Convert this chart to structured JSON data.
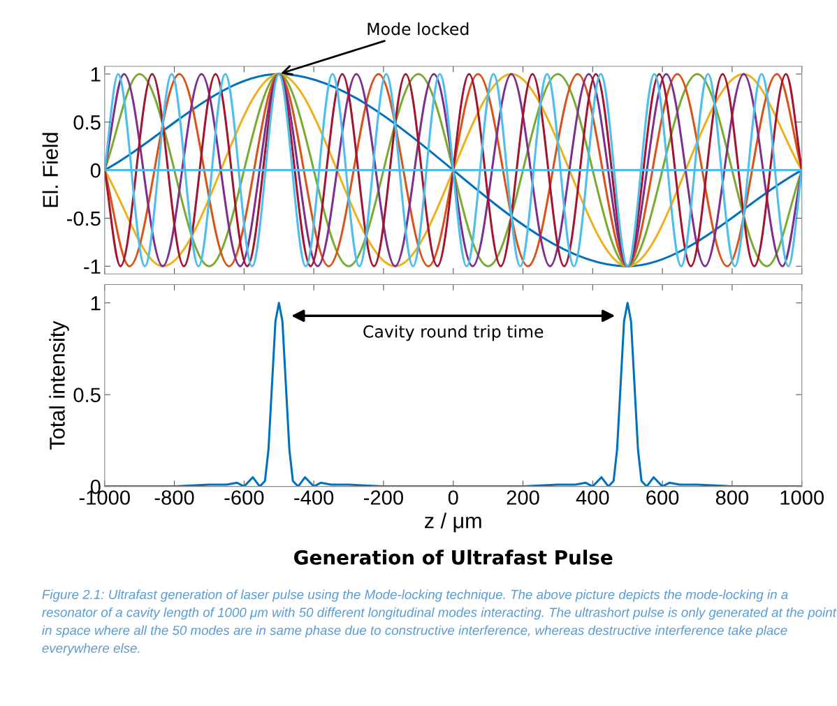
{
  "chart_data": [
    {
      "type": "line",
      "ylabel": "El. Field",
      "xlim": [
        -1000,
        1000
      ],
      "ylim": [
        -1.08,
        1.08
      ],
      "xticks": [
        {
          "value": -1000,
          "label": null
        },
        {
          "value": -800,
          "label": null
        },
        {
          "value": -600,
          "label": null
        },
        {
          "value": -400,
          "label": null
        },
        {
          "value": -200,
          "label": null
        },
        {
          "value": 0,
          "label": null
        },
        {
          "value": 200,
          "label": null
        },
        {
          "value": 400,
          "label": null
        },
        {
          "value": 600,
          "label": null
        },
        {
          "value": 800,
          "label": null
        },
        {
          "value": 1000,
          "label": null
        }
      ],
      "yticks": [
        -1,
        -0.5,
        0,
        0.5,
        1
      ],
      "tick_labels": "y",
      "grid": false,
      "line_style": "solid",
      "annotations": [
        {
          "text": "Mode locked",
          "x": -500,
          "y": 1
        }
      ],
      "series": [
        {
          "color": "#0072bd",
          "x": [
            -1000,
            -500,
            500,
            1000
          ],
          "values": [
            0,
            1,
            -1,
            0
          ]
        },
        {
          "color": "#edb120",
          "x": [
            -1000,
            -833.3,
            -500,
            -166.7,
            166.7,
            500,
            833.3,
            1000
          ],
          "values": [
            0,
            -1,
            1,
            -1,
            1,
            -1,
            1,
            0
          ]
        },
        {
          "color": "#77ac30",
          "x": [
            -1000,
            -900,
            -700,
            -500,
            -300,
            -100,
            100,
            300,
            500,
            700,
            900,
            1000
          ],
          "values": [
            0,
            1,
            -1,
            1,
            -1,
            1,
            -1,
            1,
            -1,
            1,
            -1,
            0
          ]
        },
        {
          "color": "#d95319",
          "x": [
            -1000,
            -928.6,
            -785.7,
            -642.9,
            -500,
            -357.1,
            -214.3,
            -71.4,
            71.4,
            214.3,
            357.1,
            500,
            642.9,
            785.7,
            928.6,
            1000
          ],
          "values": [
            0,
            -1,
            1,
            -1,
            1,
            -1,
            1,
            -1,
            1,
            -1,
            1,
            -1,
            1,
            -1,
            1,
            0
          ]
        },
        {
          "color": "#7e2f8e",
          "x": [
            -1000,
            -944.4,
            -833.3,
            -722.2,
            -611.1,
            -500,
            -388.9,
            -277.8,
            -166.7,
            -55.6,
            55.6,
            166.7,
            277.8,
            388.9,
            500,
            611.1,
            722.2,
            833.3,
            944.4,
            1000
          ],
          "values": [
            0,
            1,
            -1,
            1,
            -1,
            1,
            -1,
            1,
            -1,
            1,
            -1,
            1,
            -1,
            1,
            -1,
            1,
            -1,
            1,
            -1,
            0
          ]
        },
        {
          "color": "#a2142f",
          "x": [
            -1000,
            -954.5,
            -863.6,
            -772.7,
            -681.8,
            -590.9,
            -500,
            -409.1,
            -318.2,
            -227.3,
            -136.4,
            -45.5,
            45.5,
            136.4,
            227.3,
            318.2,
            409.1,
            500,
            590.9,
            681.8,
            772.7,
            863.6,
            954.5,
            1000
          ],
          "values": [
            0,
            -1,
            1,
            -1,
            1,
            -1,
            1,
            -1,
            1,
            -1,
            1,
            -1,
            1,
            -1,
            1,
            -1,
            1,
            -1,
            1,
            -1,
            1,
            -1,
            1,
            0
          ]
        },
        {
          "color": "#4dbeee",
          "x": [
            -1000,
            -961.5,
            -884.6,
            -807.7,
            -730.8,
            -653.8,
            -576.9,
            -500,
            -423.1,
            -346.2,
            -269.2,
            -192.3,
            -115.4,
            -38.5,
            38.5,
            115.4,
            192.3,
            269.2,
            346.2,
            423.1,
            500,
            576.9,
            653.8,
            730.8,
            807.7,
            884.6,
            961.5,
            1000
          ],
          "values": [
            0,
            1,
            -1,
            1,
            -1,
            1,
            -1,
            1,
            -1,
            1,
            -1,
            1,
            -1,
            1,
            -1,
            1,
            -1,
            1,
            -1,
            1,
            -1,
            1,
            -1,
            1,
            -1,
            1,
            -1,
            0
          ]
        },
        {
          "color": "#4dbeee",
          "x": [
            -1000,
            1000
          ],
          "values": [
            0,
            0
          ]
        }
      ]
    },
    {
      "type": "line",
      "title": "Generation of Ultrafast Pulse",
      "xlabel": "z / μm",
      "ylabel": "Total intensity",
      "xlim": [
        -1000,
        1000
      ],
      "ylim": [
        0,
        1.1
      ],
      "xticks": [
        -1000,
        -800,
        -600,
        -400,
        -200,
        0,
        200,
        400,
        600,
        800,
        1000
      ],
      "yticks": [
        0,
        0.5,
        1
      ],
      "grid": false,
      "line_style": "solid",
      "annotations": [
        "Cavity round trip time",
        "Figure 2.1: Ultrafast generation of laser pulse using the Mode-locking technique. The above picture depicts the mode-locking in a resonator of a cavity length of 1000 μm with 50 different longitudinal modes interacting. The ultrashort pulse is only generated at the point in space where all the 50 modes are in same phase due to constructive interference, whereas destructive interference take place everywhere else."
      ],
      "series": [
        {
          "color": "#0072bd",
          "x": [
            -1000,
            -900,
            -800,
            -700,
            -650,
            -620,
            -600,
            -575,
            -555,
            -540,
            -530,
            -520,
            -510,
            -500,
            -490,
            -480,
            -470,
            -460,
            -445,
            -425,
            -400,
            -380,
            -350,
            -300,
            -200,
            -100,
            0,
            100,
            200,
            300,
            350,
            380,
            400,
            425,
            445,
            460,
            470,
            480,
            490,
            500,
            510,
            520,
            530,
            540,
            555,
            575,
            600,
            620,
            650,
            700,
            800,
            900,
            1000
          ],
          "values": [
            0,
            0,
            0,
            0.01,
            0.01,
            0.02,
            0,
            0.05,
            0,
            0.03,
            0.2,
            0.55,
            0.9,
            1,
            0.9,
            0.55,
            0.2,
            0.03,
            0,
            0.05,
            0,
            0.02,
            0.01,
            0.01,
            0,
            0,
            0,
            0,
            0,
            0.01,
            0.01,
            0.02,
            0,
            0.05,
            0,
            0.03,
            0.2,
            0.55,
            0.9,
            1,
            0.9,
            0.55,
            0.2,
            0.03,
            0,
            0.05,
            0,
            0.02,
            0.01,
            0.01,
            0,
            0,
            0
          ]
        }
      ]
    }
  ]
}
